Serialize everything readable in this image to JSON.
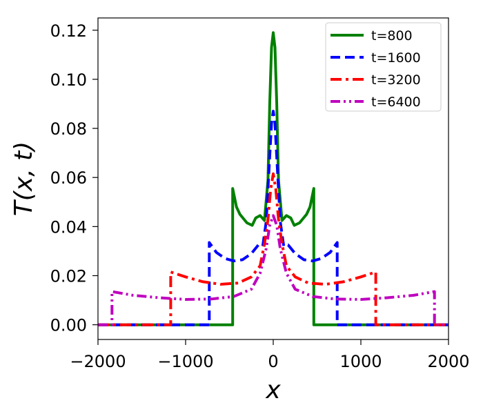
{
  "chart_data": {
    "type": "line",
    "xlabel": "x",
    "ylabel": "T(x, t)",
    "xlim": [
      -2000,
      2000
    ],
    "ylim": [
      -0.006,
      0.125
    ],
    "xticks": [
      -2000,
      -1000,
      0,
      1000,
      2000
    ],
    "xtick_labels": [
      "−2000",
      "−1000",
      "0",
      "1000",
      "2000"
    ],
    "yticks": [
      0.0,
      0.02,
      0.04,
      0.06,
      0.08,
      0.1,
      0.12
    ],
    "ytick_labels": [
      "0.00",
      "0.02",
      "0.04",
      "0.06",
      "0.08",
      "0.10",
      "0.12"
    ],
    "grid": false,
    "legend_position": "top-right",
    "series": [
      {
        "name": "t=800",
        "color": "#008000",
        "dash": "solid",
        "x": [
          -2000,
          -463,
          -463,
          -420,
          -380,
          -300,
          -240,
          -200,
          -150,
          -100,
          -60,
          -40,
          -20,
          0,
          20,
          40,
          60,
          100,
          150,
          200,
          240,
          300,
          380,
          420,
          463,
          463,
          2000
        ],
        "y": [
          0,
          0,
          0.0555,
          0.048,
          0.045,
          0.0415,
          0.0405,
          0.0435,
          0.0445,
          0.0425,
          0.059,
          0.09,
          0.113,
          0.119,
          0.113,
          0.09,
          0.059,
          0.0425,
          0.0445,
          0.0435,
          0.0405,
          0.0415,
          0.045,
          0.048,
          0.0555,
          0,
          0
        ]
      },
      {
        "name": "t=1600",
        "color": "#0000ff",
        "dash": "dashed",
        "x": [
          -2000,
          -730,
          -730,
          -650,
          -550,
          -450,
          -350,
          -250,
          -170,
          -120,
          -80,
          -50,
          -20,
          0,
          20,
          50,
          80,
          120,
          170,
          250,
          350,
          450,
          550,
          650,
          730,
          730,
          2000
        ],
        "y": [
          0,
          0,
          0.0335,
          0.0295,
          0.027,
          0.026,
          0.0265,
          0.029,
          0.0325,
          0.032,
          0.042,
          0.062,
          0.082,
          0.087,
          0.082,
          0.062,
          0.042,
          0.032,
          0.0325,
          0.029,
          0.0265,
          0.026,
          0.027,
          0.0295,
          0.0335,
          0,
          0
        ]
      },
      {
        "name": "t=3200",
        "color": "#ff0000",
        "dash": "dashdot",
        "x": [
          -2000,
          -1170,
          -1170,
          -1000,
          -800,
          -600,
          -400,
          -250,
          -150,
          -100,
          -60,
          -30,
          0,
          30,
          60,
          100,
          150,
          250,
          400,
          600,
          800,
          1000,
          1170,
          1170,
          2000
        ],
        "y": [
          0,
          0,
          0.0215,
          0.0195,
          0.0175,
          0.0165,
          0.017,
          0.0195,
          0.024,
          0.033,
          0.043,
          0.055,
          0.0615,
          0.055,
          0.043,
          0.033,
          0.024,
          0.0195,
          0.017,
          0.0165,
          0.0175,
          0.0195,
          0.0215,
          0,
          0
        ]
      },
      {
        "name": "t=6400",
        "color": "#bf00bf",
        "dash": "dashdotdot",
        "x": [
          -2000,
          -1840,
          -1840,
          -1600,
          -1300,
          -1000,
          -700,
          -450,
          -250,
          -150,
          -80,
          -40,
          0,
          40,
          80,
          150,
          250,
          450,
          700,
          1000,
          1300,
          1600,
          1840,
          1840,
          2000
        ],
        "y": [
          0,
          0,
          0.0135,
          0.012,
          0.011,
          0.0103,
          0.0105,
          0.0115,
          0.0145,
          0.021,
          0.031,
          0.0405,
          0.0445,
          0.0405,
          0.031,
          0.021,
          0.0145,
          0.0115,
          0.0105,
          0.0103,
          0.011,
          0.012,
          0.0135,
          0,
          0
        ]
      }
    ]
  }
}
